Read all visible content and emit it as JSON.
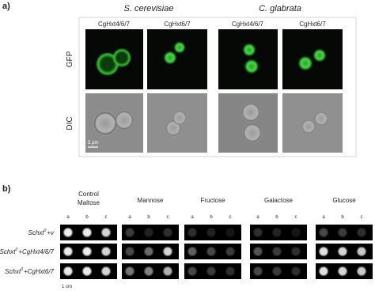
{
  "panel_a": {
    "label": "a)",
    "species": [
      "S. cerevisiae",
      "C. glabrata"
    ],
    "columns": [
      "CgHxt4/6/7",
      "CgHxt6/7",
      "CgHxt4/6/7",
      "CgHxt6/7"
    ],
    "rows": [
      "GFP",
      "DIC"
    ],
    "scale_bar": "5 µm"
  },
  "panel_b": {
    "label": "b)",
    "conditions": [
      [
        "Control",
        "Maltose"
      ],
      [
        "Mannose"
      ],
      [
        "Fructose"
      ],
      [
        "Galactose"
      ],
      [
        "Glucose"
      ]
    ],
    "dilutions": [
      "a",
      "b",
      "c"
    ],
    "strains": [
      {
        "name": "Schxt",
        "superscript": "0",
        "suffix": "+v"
      },
      {
        "name": "Schxt",
        "superscript": "0",
        "suffix": "+CgHxt4/6/7"
      },
      {
        "name": "Schxt",
        "superscript": "0",
        "suffix": "+CgHxt6/7"
      }
    ],
    "scale": "1 cm"
  }
}
